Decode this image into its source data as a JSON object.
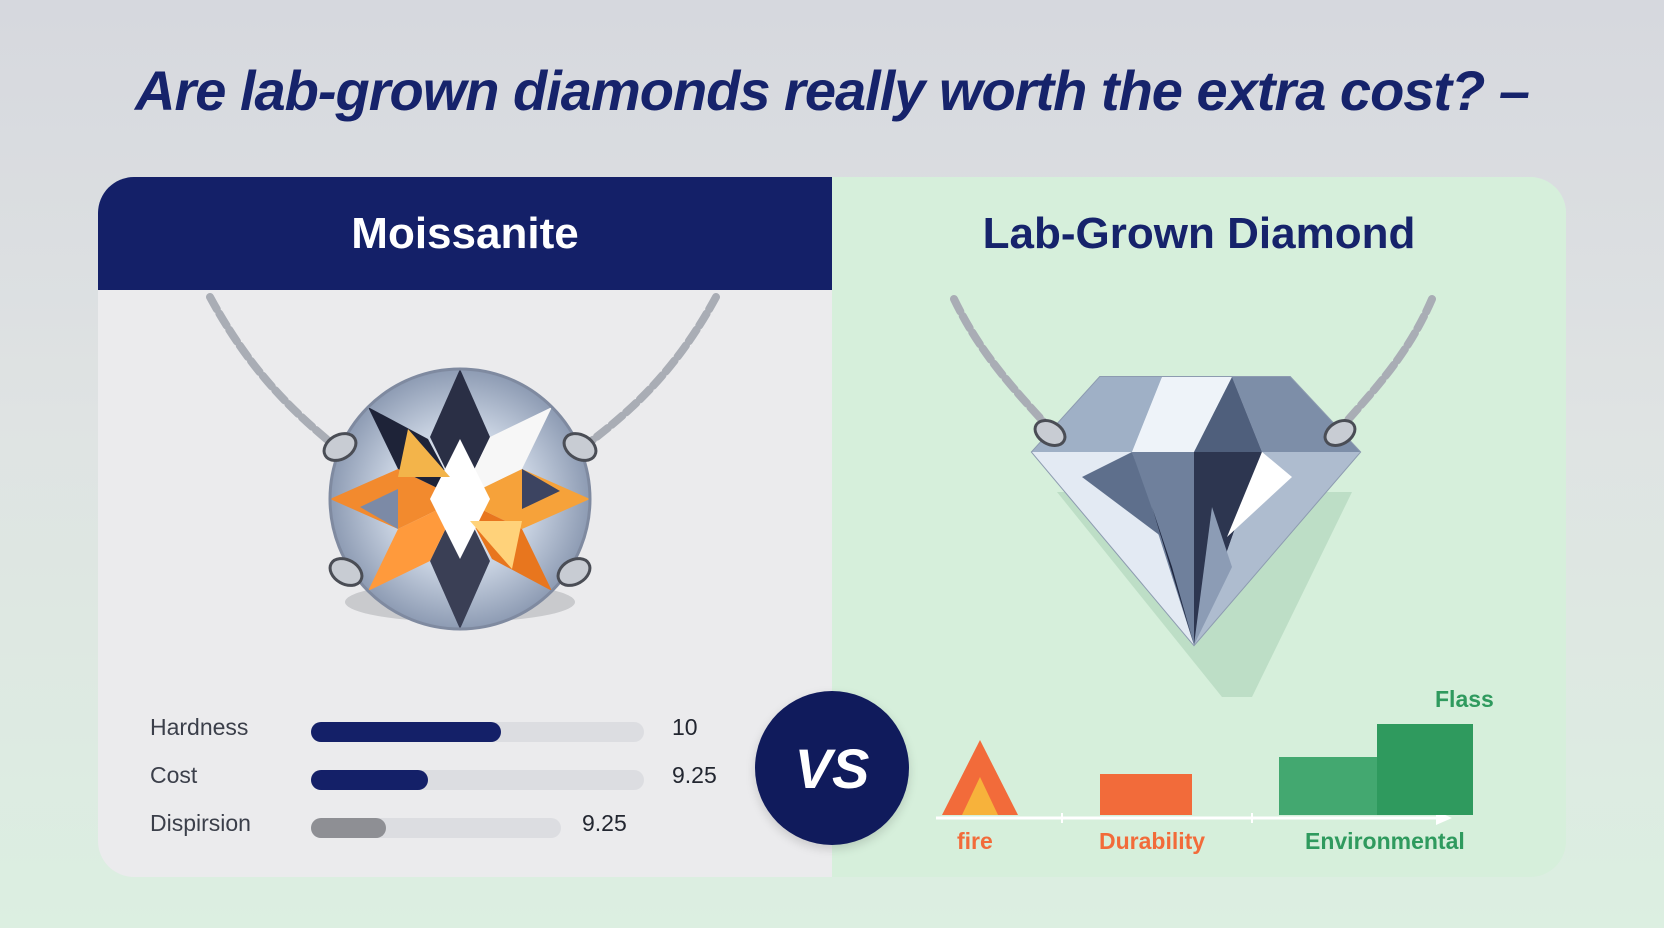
{
  "headline": "Are lab-grown diamonds really worth the extra cost? –",
  "moissanite": {
    "title": "Moissanite",
    "metrics": [
      {
        "label": "Hardness",
        "value": "10",
        "fill_fraction": 0.57,
        "color": "#142068"
      },
      {
        "label": "Cost",
        "value": "9.25",
        "fill_fraction": 0.35,
        "color": "#142068"
      },
      {
        "label": "Dispirsion",
        "value": "9.25",
        "fill_fraction": 0.3,
        "color": "#8e8f94"
      }
    ]
  },
  "lab_diamond": {
    "title": "Lab-Grown Diamond",
    "chart": {
      "bars": [
        {
          "label": "fire",
          "color": "#f26b3a"
        },
        {
          "label": "Durability",
          "color": "#f26b3a"
        },
        {
          "label": "Environmental",
          "color": "#2f9a5e"
        }
      ],
      "annotation": "Flass"
    }
  },
  "vs_label": "VS",
  "colors": {
    "navy": "#142068",
    "orange": "#f26b3a",
    "green": "#2f9a5e"
  },
  "icons": [
    "moissanite-necklace-icon",
    "diamond-necklace-icon",
    "flame-icon"
  ]
}
